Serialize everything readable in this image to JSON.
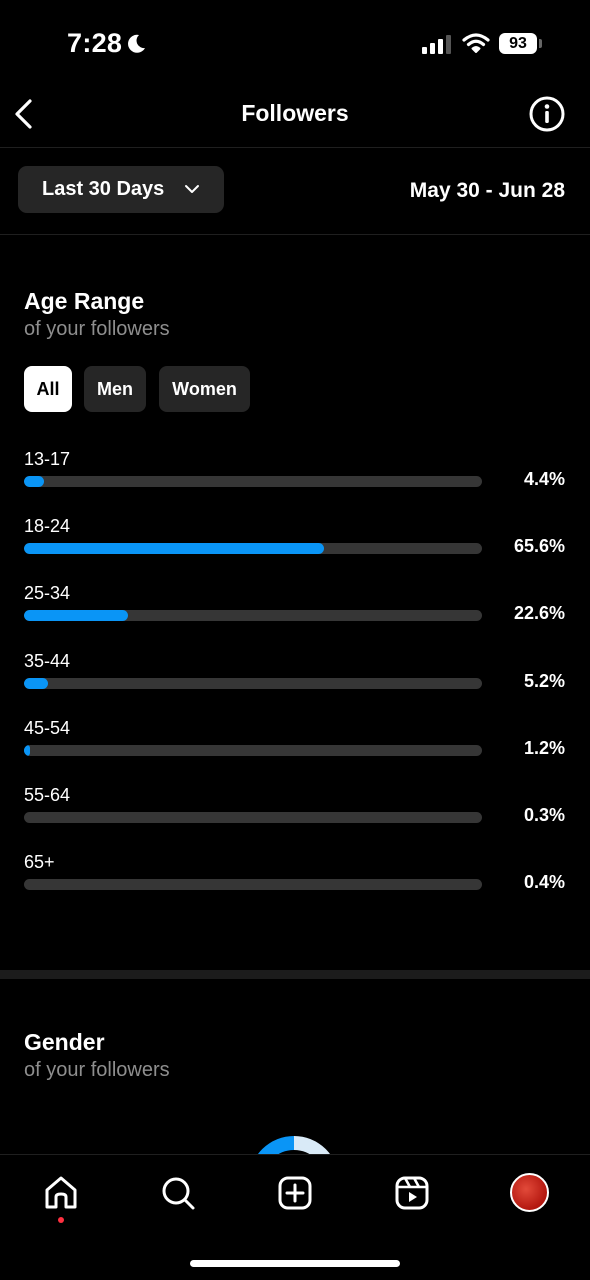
{
  "status_bar": {
    "time": "7:28",
    "battery": "93"
  },
  "header": {
    "title": "Followers"
  },
  "filter": {
    "range_label": "Last 30 Days",
    "date_range": "May 30 - Jun 28"
  },
  "age_section": {
    "title": "Age Range",
    "subtitle": "of your followers",
    "tabs": [
      {
        "label": "All",
        "active": true
      },
      {
        "label": "Men",
        "active": false
      },
      {
        "label": "Women",
        "active": false
      }
    ],
    "rows": [
      {
        "label": "13-17",
        "percent_text": "4.4%",
        "value": 4.4
      },
      {
        "label": "18-24",
        "percent_text": "65.6%",
        "value": 65.6
      },
      {
        "label": "25-34",
        "percent_text": "22.6%",
        "value": 22.6
      },
      {
        "label": "35-44",
        "percent_text": "5.2%",
        "value": 5.2
      },
      {
        "label": "45-54",
        "percent_text": "1.2%",
        "value": 1.2
      },
      {
        "label": "55-64",
        "percent_text": "0.3%",
        "value": 0.3
      },
      {
        "label": "65+",
        "percent_text": "0.4%",
        "value": 0.4
      }
    ],
    "bar_color": "#0a95f6"
  },
  "gender_section": {
    "title": "Gender",
    "subtitle": "of your followers"
  },
  "bottom_nav": {
    "items": [
      "home-icon",
      "search-icon",
      "create-icon",
      "reels-icon",
      "profile-avatar"
    ]
  }
}
